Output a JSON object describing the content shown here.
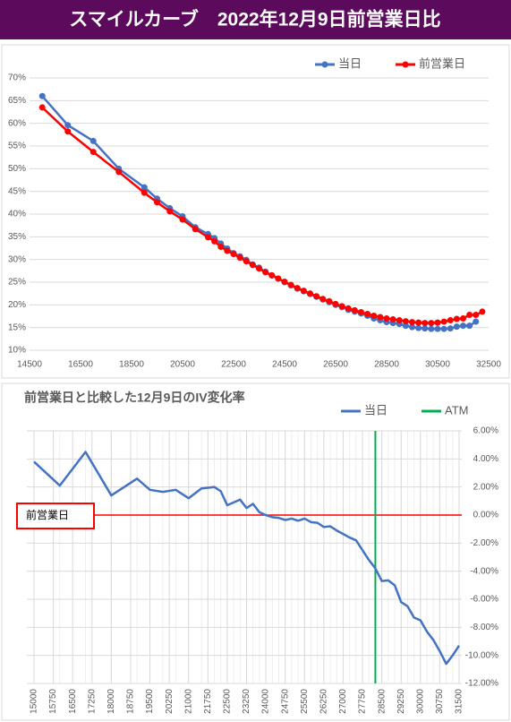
{
  "title": "スマイルカーブ　2022年12月9日前営業日比",
  "chart_data": [
    {
      "type": "line",
      "x": [
        15000,
        16000,
        17000,
        18000,
        19000,
        19500,
        20000,
        20500,
        21000,
        21500,
        21750,
        22000,
        22250,
        22500,
        22750,
        23000,
        23250,
        23500,
        23750,
        24000,
        24250,
        24500,
        24750,
        25000,
        25250,
        25500,
        25750,
        26000,
        26250,
        26500,
        26750,
        27000,
        27250,
        27500,
        27750,
        28000,
        28250,
        28500,
        28750,
        29000,
        29250,
        29500,
        29750,
        30000,
        30250,
        30500,
        30750,
        31000,
        31250,
        31500,
        31750,
        32000,
        32250
      ],
      "series": [
        {
          "name": "当日",
          "color": "#4472c4",
          "values": [
            66.0,
            59.6,
            56.1,
            50.0,
            45.9,
            43.4,
            41.3,
            39.5,
            37.1,
            35.6,
            34.7,
            33.5,
            32.4,
            31.4,
            30.7,
            29.9,
            28.9,
            28.2,
            27.3,
            26.5,
            25.8,
            25.0,
            24.3,
            23.6,
            23.0,
            22.4,
            21.8,
            21.2,
            20.6,
            20.0,
            19.5,
            18.9,
            18.5,
            18.1,
            17.6,
            17.0,
            16.6,
            16.2,
            16.0,
            15.8,
            15.4,
            15.1,
            14.9,
            14.8,
            14.7,
            14.7,
            14.7,
            14.8,
            15.2,
            15.4,
            15.4,
            16.3,
            null
          ]
        },
        {
          "name": "前営業日",
          "color": "#ff0000",
          "values": [
            63.5,
            58.2,
            53.7,
            49.3,
            44.7,
            42.6,
            40.6,
            38.8,
            36.7,
            34.9,
            34.0,
            32.8,
            31.9,
            31.2,
            30.4,
            29.6,
            28.8,
            28.0,
            27.2,
            26.5,
            25.8,
            25.1,
            24.4,
            23.7,
            23.1,
            22.5,
            21.9,
            21.3,
            20.8,
            20.2,
            19.7,
            19.2,
            18.8,
            18.4,
            18.0,
            17.6,
            17.3,
            17.0,
            16.8,
            16.6,
            16.4,
            16.2,
            16.1,
            16.0,
            16.0,
            16.1,
            16.3,
            16.6,
            16.9,
            17.0,
            17.8,
            17.8,
            18.5
          ]
        }
      ],
      "markers": true,
      "xlim": [
        14500,
        32500
      ],
      "xticks": [
        14500,
        16500,
        18500,
        20500,
        22500,
        24500,
        26500,
        28500,
        30500,
        32500
      ],
      "ylim": [
        10,
        70
      ],
      "yticks": [
        {
          "value": 10,
          "label": "10%"
        },
        {
          "value": 15,
          "label": "15%"
        },
        {
          "value": 20,
          "label": "20%"
        },
        {
          "value": 25,
          "label": "25%"
        },
        {
          "value": 30,
          "label": "30%"
        },
        {
          "value": 35,
          "label": "35%"
        },
        {
          "value": 40,
          "label": "40%"
        },
        {
          "value": 45,
          "label": "45%"
        },
        {
          "value": 50,
          "label": "50%"
        },
        {
          "value": 55,
          "label": "55%"
        },
        {
          "value": 60,
          "label": "60%"
        },
        {
          "value": 65,
          "label": "65%"
        },
        {
          "value": 70,
          "label": "70%"
        }
      ],
      "grid": true
    },
    {
      "type": "line",
      "title": "前営業日と比較した12月9日のIV変化率",
      "x": [
        15000,
        16000,
        17000,
        18000,
        19000,
        19500,
        20000,
        20500,
        21000,
        21500,
        21750,
        22000,
        22250,
        22500,
        22750,
        23000,
        23250,
        23500,
        23750,
        24000,
        24250,
        24500,
        24750,
        25000,
        25250,
        25500,
        25750,
        26000,
        26250,
        26500,
        26750,
        27000,
        27250,
        27500,
        27750,
        28000,
        28250,
        28500,
        28750,
        29000,
        29250,
        29500,
        29750,
        30000,
        30250,
        30500,
        30750,
        31000,
        31250,
        31500
      ],
      "series": [
        {
          "name": "当日",
          "color": "#4472c4",
          "values": [
            3.8,
            2.1,
            4.5,
            1.4,
            2.6,
            1.8,
            1.65,
            1.8,
            1.2,
            1.9,
            1.95,
            2.0,
            1.7,
            0.7,
            0.9,
            1.1,
            0.5,
            0.8,
            0.2,
            0.0,
            -0.15,
            -0.2,
            -0.35,
            -0.25,
            -0.4,
            -0.25,
            -0.5,
            -0.55,
            -0.85,
            -0.8,
            -1.1,
            -1.35,
            -1.6,
            -1.8,
            -2.5,
            -3.2,
            -3.8,
            -4.7,
            -4.65,
            -5.0,
            -6.2,
            -6.5,
            -7.3,
            -7.5,
            -8.3,
            -8.9,
            -9.7,
            -10.6,
            -10.0,
            -9.3
          ]
        }
      ],
      "markers": false,
      "atm": {
        "name": "ATM",
        "x": 28250,
        "color": "#00b050"
      },
      "reference_line": {
        "label": "前営業日",
        "value": 0,
        "color": "#ff0000"
      },
      "xlim": [
        15000,
        31500
      ],
      "xticks": [
        15000,
        15750,
        16500,
        17250,
        18000,
        18750,
        19500,
        20250,
        21000,
        21750,
        22500,
        23250,
        24000,
        24750,
        25500,
        26250,
        27000,
        27750,
        28500,
        29250,
        30000,
        30750,
        31500
      ],
      "ylim": [
        -12,
        6
      ],
      "yticks": [
        {
          "value": 6,
          "label": "6.00%"
        },
        {
          "value": 4,
          "label": "4.00%"
        },
        {
          "value": 2,
          "label": "2.00%"
        },
        {
          "value": 0,
          "label": "0.00%"
        },
        {
          "value": -2,
          "label": "-2.00%"
        },
        {
          "value": -4,
          "label": "-4.00%"
        },
        {
          "value": -6,
          "label": "-6.00%"
        },
        {
          "value": -8,
          "label": "-8.00%"
        },
        {
          "value": -10,
          "label": "-10.00%"
        },
        {
          "value": -12,
          "label": "-12.00%"
        }
      ],
      "grid": true,
      "y_axis_side": "right"
    }
  ]
}
